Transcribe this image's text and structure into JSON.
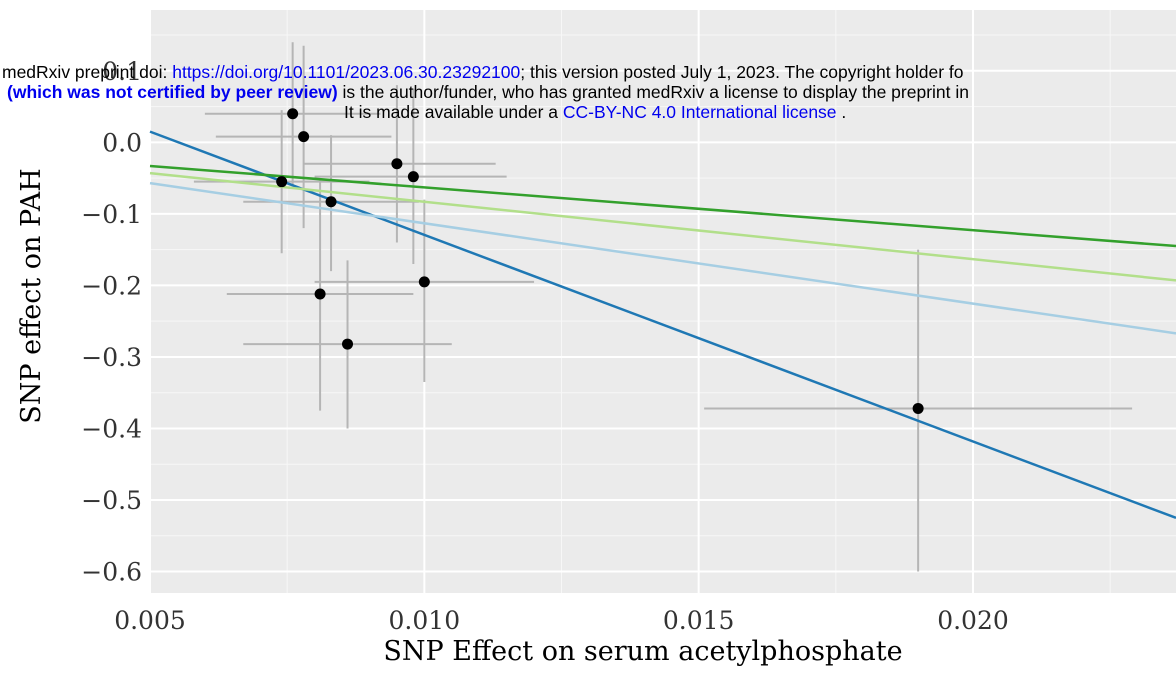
{
  "chart_data": {
    "type": "scatter",
    "xlabel": "SNP Effect on serum acetylphosphate",
    "ylabel": "SNP effect on PAH",
    "xlim": [
      0.005,
      0.0237
    ],
    "ylim": [
      -0.63,
      0.185
    ],
    "x_ticks": [
      "0.005",
      "0.010",
      "0.015",
      "0.020"
    ],
    "y_ticks": [
      "0.1",
      "0.0",
      "−0.1",
      "−0.2",
      "−0.3",
      "−0.4",
      "−0.5",
      "−0.6"
    ],
    "grid": true,
    "points": [
      {
        "x": 0.0074,
        "y": -0.055,
        "xmin": 0.0058,
        "xmax": 0.009,
        "ymin": -0.155,
        "ymax": 0.045
      },
      {
        "x": 0.0076,
        "y": 0.04,
        "xmin": 0.006,
        "xmax": 0.0092,
        "ymin": -0.06,
        "ymax": 0.14
      },
      {
        "x": 0.0078,
        "y": 0.008,
        "xmin": 0.0062,
        "xmax": 0.0094,
        "ymin": -0.12,
        "ymax": 0.135
      },
      {
        "x": 0.0081,
        "y": -0.212,
        "xmin": 0.0064,
        "xmax": 0.0098,
        "ymin": -0.375,
        "ymax": -0.05
      },
      {
        "x": 0.0083,
        "y": -0.083,
        "xmin": 0.0067,
        "xmax": 0.0099,
        "ymin": -0.18,
        "ymax": 0.01
      },
      {
        "x": 0.0086,
        "y": -0.282,
        "xmin": 0.0067,
        "xmax": 0.0105,
        "ymin": -0.4,
        "ymax": -0.165
      },
      {
        "x": 0.0095,
        "y": -0.03,
        "xmin": 0.0078,
        "xmax": 0.0113,
        "ymin": -0.14,
        "ymax": 0.08
      },
      {
        "x": 0.0098,
        "y": -0.048,
        "xmin": 0.008,
        "xmax": 0.0115,
        "ymin": -0.17,
        "ymax": 0.075
      },
      {
        "x": 0.01,
        "y": -0.195,
        "xmin": 0.008,
        "xmax": 0.012,
        "ymin": -0.335,
        "ymax": -0.08
      },
      {
        "x": 0.019,
        "y": -0.372,
        "xmin": 0.0151,
        "xmax": 0.0229,
        "ymin": -0.6,
        "ymax": -0.15
      }
    ],
    "lines": [
      {
        "color": "#1f78b4",
        "y_at_xmin": 0.015,
        "y_at_xmax": -0.525
      },
      {
        "color": "#33a02c",
        "y_at_xmin": -0.033,
        "y_at_xmax": -0.145
      },
      {
        "color": "#b2df8a",
        "y_at_xmin": -0.043,
        "y_at_xmax": -0.193
      },
      {
        "color": "#a6cee3",
        "y_at_xmin": -0.057,
        "y_at_xmax": -0.267
      }
    ],
    "colors": {
      "panel": "#ebebeb",
      "grid_major": "#ffffff",
      "errorbar": "#b5b5b5",
      "point": "#000000"
    }
  },
  "banner": {
    "line1_prefix": "medRxiv preprint doi: ",
    "line1_link": "https://doi.org/10.1101/2023.06.30.23292100",
    "line1_suffix": "; this version posted July 1, 2023. The copyright holder fo",
    "line2_bold": "(which was not certified by peer review)",
    "line2_suffix": " is the author/funder, who has granted medRxiv a license to display the preprint in",
    "line3_prefix": "It is made available under a ",
    "line3_link": "CC-BY-NC 4.0 International license",
    "line3_suffix": " ."
  }
}
